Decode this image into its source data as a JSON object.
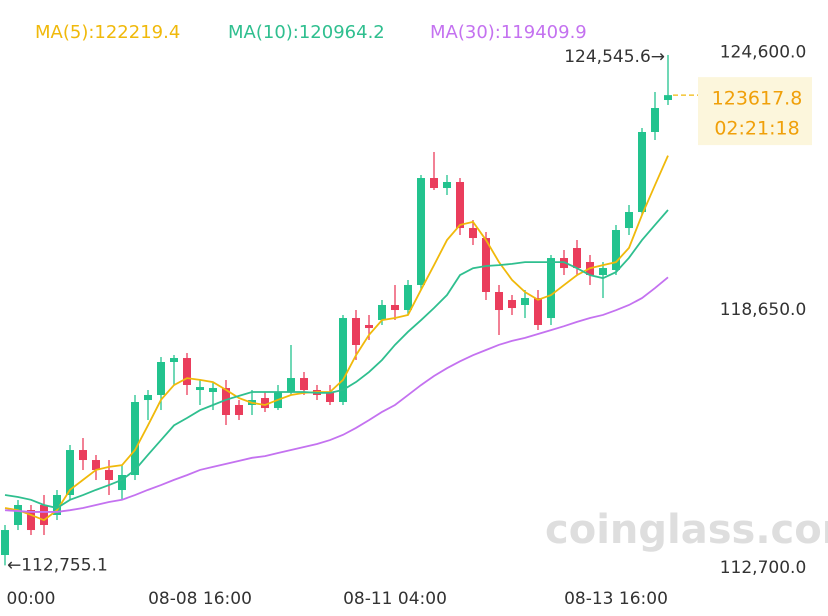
{
  "chart_data": {
    "type": "candlestick",
    "categories": [
      null,
      null,
      "00:00",
      null,
      null,
      null,
      null,
      null,
      null,
      null,
      null,
      null,
      null,
      null,
      null,
      "08-08 16:00",
      null,
      null,
      null,
      null,
      null,
      null,
      null,
      null,
      null,
      null,
      null,
      null,
      null,
      null,
      "08-11 04:00",
      null,
      null,
      null,
      null,
      null,
      null,
      null,
      null,
      null,
      null,
      null,
      null,
      null,
      null,
      null,
      null,
      "08-13 16:00",
      null,
      null,
      null,
      null
    ],
    "open": [
      112995,
      113688,
      114034,
      114150,
      113919,
      114381,
      115420,
      115189,
      114958,
      114496,
      114843,
      116575,
      116691,
      117453,
      117545,
      116806,
      116760,
      116852,
      116460,
      116460,
      116621,
      116390,
      116760,
      117083,
      116806,
      116760,
      116529,
      118469,
      118308,
      118423,
      118770,
      118654,
      119232,
      121703,
      121472,
      121611,
      120548,
      120317,
      119070,
      118885,
      118770,
      118931,
      118469,
      119855,
      120086,
      119763,
      119463,
      119578,
      120548,
      120918,
      122766,
      123505
    ],
    "high": [
      113688,
      114265,
      114150,
      114381,
      114496,
      115536,
      115697,
      115305,
      115189,
      115074,
      116691,
      116806,
      117568,
      117615,
      117661,
      117037,
      116968,
      117037,
      116575,
      116806,
      116760,
      116922,
      117846,
      117222,
      116922,
      116922,
      118539,
      118654,
      118539,
      118885,
      119232,
      119347,
      121773,
      122304,
      121773,
      121703,
      120733,
      120456,
      119232,
      119001,
      119116,
      119116,
      119925,
      120040,
      120271,
      119925,
      119763,
      120618,
      121080,
      122858,
      123690,
      124545.6
    ],
    "low": [
      112755.1,
      113572,
      113457,
      113457,
      113803,
      114265,
      114958,
      114727,
      114381,
      114265,
      114727,
      116113,
      116344,
      116922,
      116691,
      116460,
      116344,
      115998,
      116113,
      116229,
      116298,
      116344,
      116691,
      116691,
      116575,
      116460,
      116460,
      117499,
      117961,
      118308,
      118423,
      118539,
      119116,
      121426,
      121311,
      120387,
      120156,
      118885,
      118077,
      118539,
      118469,
      118192,
      118308,
      119463,
      119463,
      119232,
      118931,
      119463,
      120387,
      120849,
      122581,
      123390
    ],
    "close": [
      113572,
      114150,
      113572,
      113688,
      114381,
      115420,
      115189,
      114958,
      114727,
      114843,
      116529,
      116691,
      117453,
      117545,
      116922,
      116875,
      116852,
      116229,
      116229,
      116575,
      116390,
      116760,
      117083,
      116806,
      116691,
      116529,
      118469,
      117846,
      118238,
      118770,
      118654,
      119232,
      121703,
      121472,
      121611,
      120548,
      120317,
      119070,
      118654,
      118700,
      118931,
      118308,
      119855,
      119624,
      119624,
      119463,
      119624,
      120502,
      120918,
      122766,
      123320,
      123617.8
    ],
    "up_color": "#22c38e",
    "down_color": "#ea3d5c",
    "series": [
      {
        "name": "MA(5):122219.4",
        "color": "#f0b90b",
        "values": [
          114080,
          114030,
          113920,
          113800,
          114030,
          114500,
          114730,
          114960,
          115030,
          115070,
          115420,
          115990,
          116580,
          116920,
          117080,
          117040,
          116990,
          116810,
          116620,
          116510,
          116460,
          116580,
          116690,
          116740,
          116760,
          116760,
          117040,
          117610,
          118080,
          118420,
          118470,
          118540,
          119120,
          119690,
          120270,
          120620,
          120690,
          120270,
          119760,
          119350,
          119070,
          118890,
          119000,
          119230,
          119460,
          119620,
          119690,
          119760,
          120090,
          120850,
          121540,
          122219.4
        ]
      },
      {
        "name": "MA(10):120964.2",
        "color": "#2fbf8f",
        "values": [
          114380,
          114335,
          114270,
          114150,
          114080,
          114270,
          114380,
          114500,
          114610,
          114730,
          114960,
          115310,
          115650,
          115990,
          116160,
          116340,
          116460,
          116580,
          116670,
          116760,
          116760,
          116760,
          116760,
          116760,
          116740,
          116740,
          116810,
          116990,
          117220,
          117500,
          117850,
          118150,
          118420,
          118700,
          119000,
          119460,
          119620,
          119670,
          119690,
          119720,
          119760,
          119760,
          119760,
          119760,
          119620,
          119460,
          119390,
          119530,
          119860,
          120270,
          120620,
          120964.2
        ]
      },
      {
        "name": "MA(30):119409.9",
        "color": "#c472f0",
        "values": [
          114030,
          114010,
          113990,
          113990,
          113990,
          114030,
          114080,
          114150,
          114220,
          114270,
          114380,
          114500,
          114610,
          114730,
          114840,
          114960,
          115030,
          115100,
          115170,
          115240,
          115280,
          115350,
          115420,
          115490,
          115560,
          115650,
          115770,
          115930,
          116110,
          116300,
          116460,
          116690,
          116920,
          117130,
          117310,
          117470,
          117610,
          117730,
          117850,
          117940,
          118010,
          118100,
          118190,
          118280,
          118380,
          118470,
          118540,
          118650,
          118770,
          118930,
          119160,
          119409.9
        ]
      }
    ],
    "ylim": [
      111586,
      125815
    ],
    "yticks": [
      {
        "value": 124600,
        "label": "124,600.0"
      },
      {
        "value": 118650,
        "label": "118,650.0"
      },
      {
        "value": 112700,
        "label": "112,700.0"
      }
    ],
    "high_label": "124,545.6→",
    "low_label": "←112,755.1",
    "current_price": 123617.8,
    "countdown": "02:21:18",
    "watermark": "coinglass.com"
  }
}
